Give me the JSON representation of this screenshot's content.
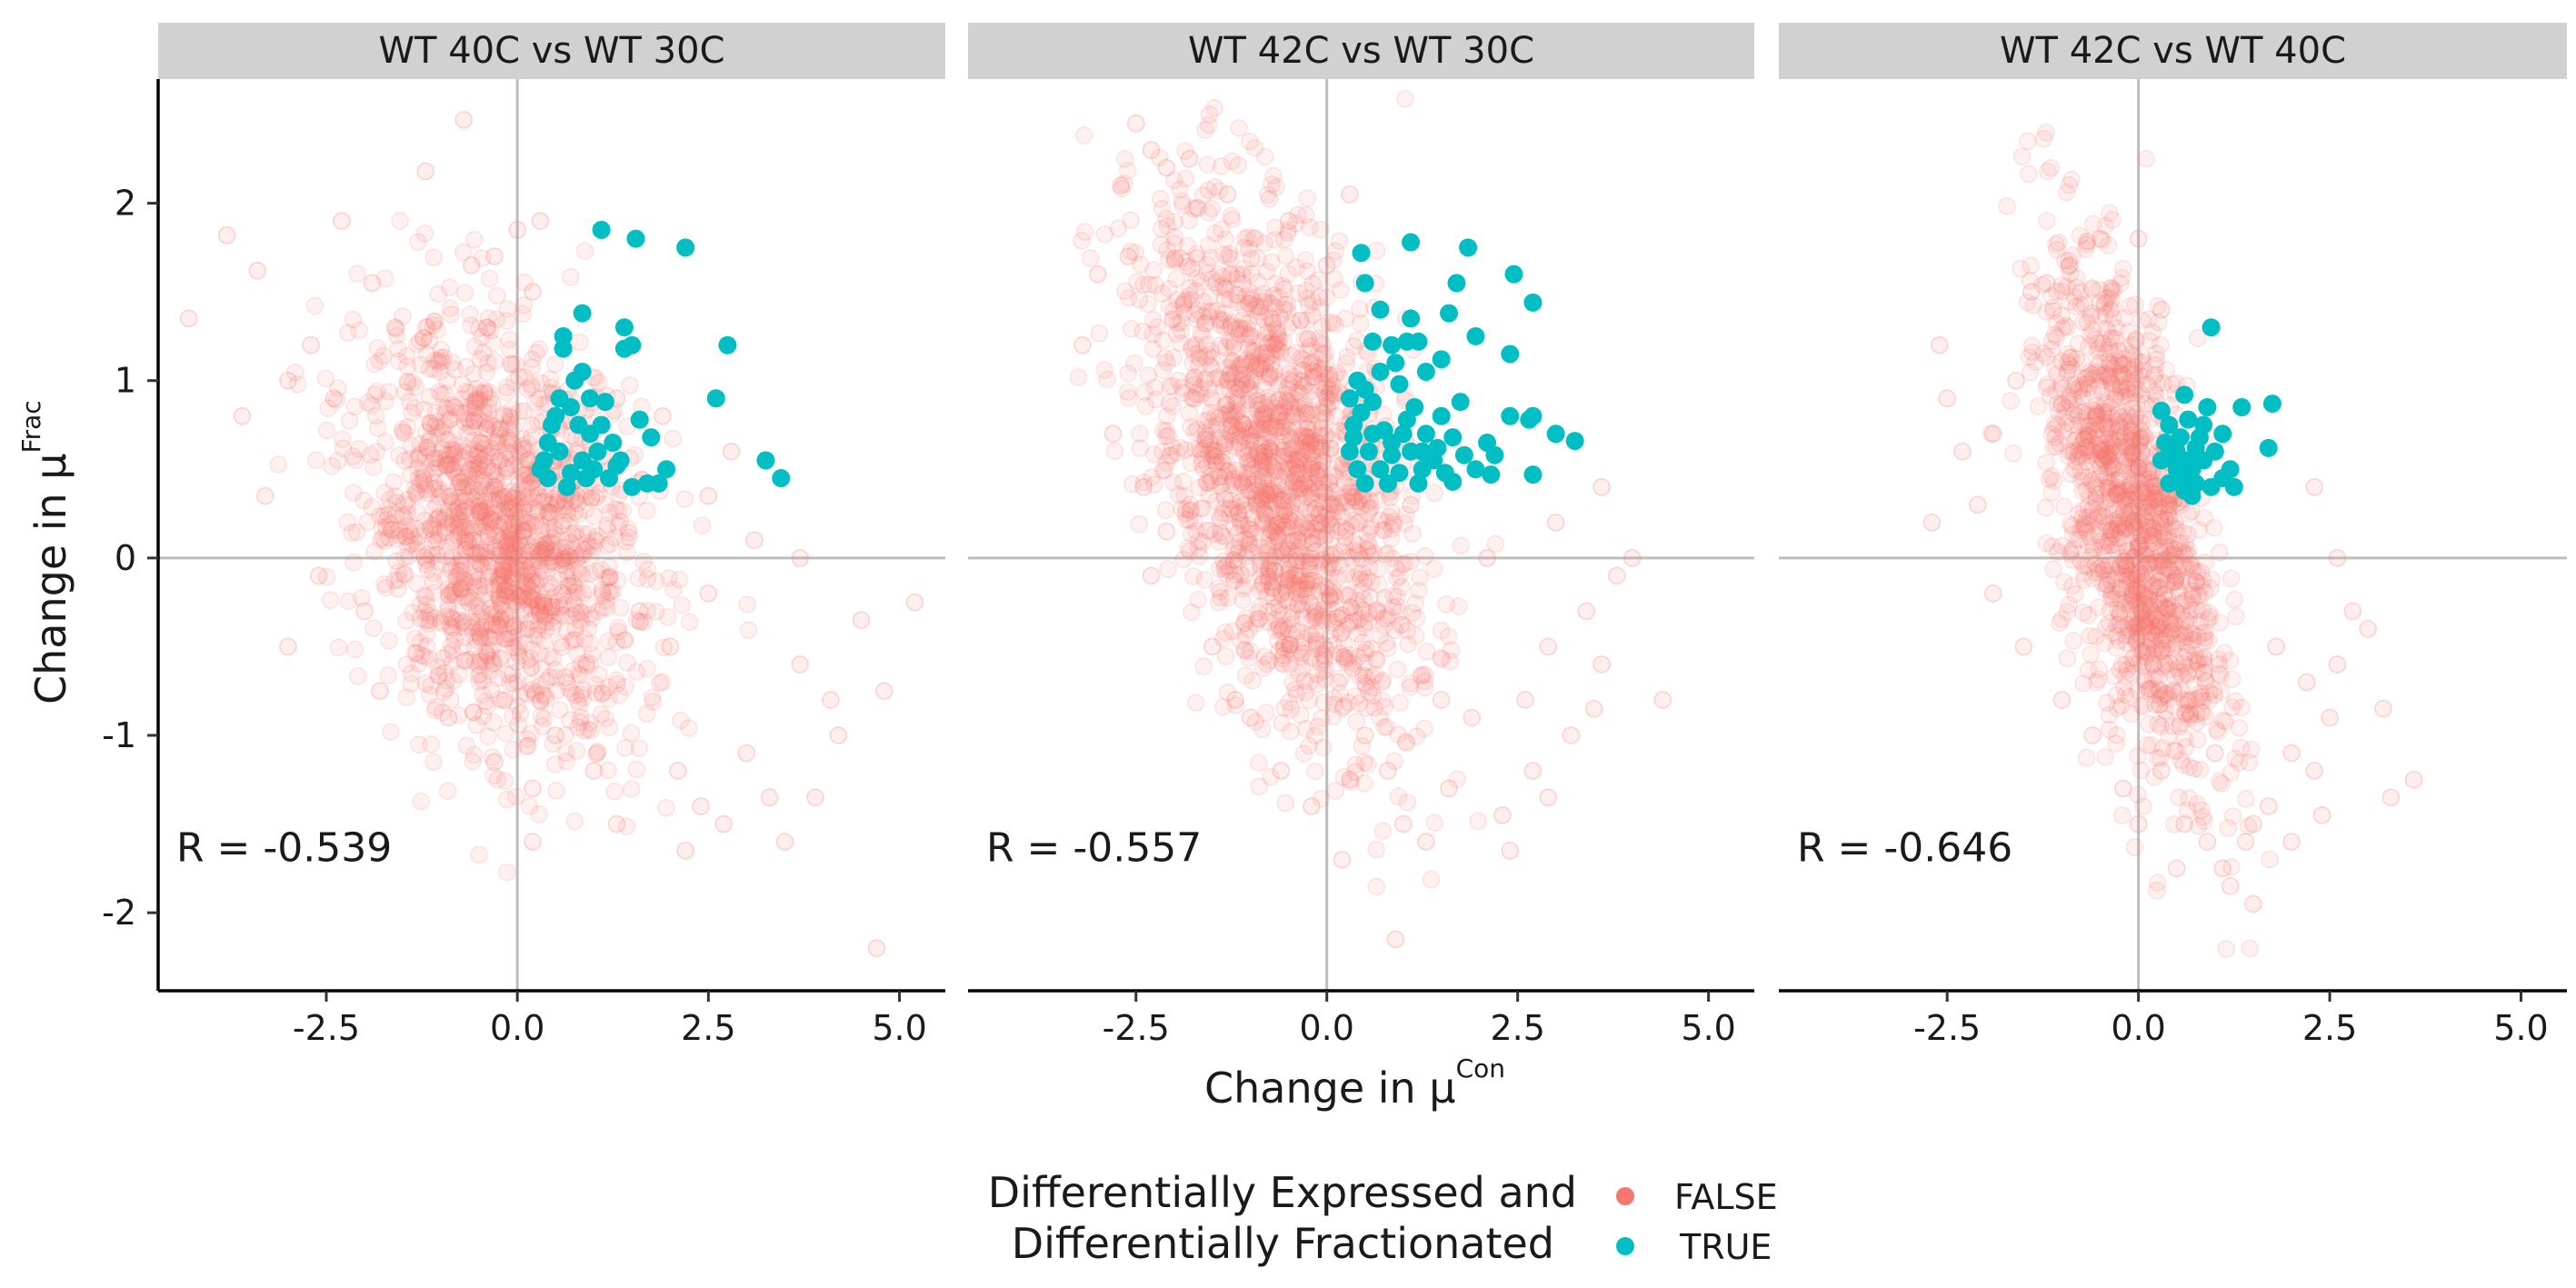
{
  "chart_data": {
    "type": "scatter",
    "ylabel_main": "Change in μ",
    "ylabel_sup": "Frac",
    "xlabel_main": "Change in μ",
    "xlabel_sup": "Con",
    "xlim": [
      -4.7,
      5.6
    ],
    "ylim": [
      -2.44,
      2.7
    ],
    "x_ticks": [
      -2.5,
      0.0,
      2.5,
      5.0
    ],
    "x_tick_labels": [
      "-2.5",
      "0.0",
      "2.5",
      "5.0"
    ],
    "y_ticks": [
      2,
      1,
      0,
      -1,
      -2
    ],
    "y_tick_labels": [
      "2",
      "1",
      "0",
      "-1",
      "-2"
    ],
    "grid": false,
    "reference_lines": {
      "x": 0,
      "y": 0
    },
    "legend": {
      "title_line1": "Differentially Expressed and",
      "title_line2": "Differentially Fractionated",
      "position": "bottom",
      "entries": [
        {
          "label": "FALSE",
          "color": "#F8766D"
        },
        {
          "label": "TRUE",
          "color": "#00BFC4"
        }
      ]
    },
    "colors": {
      "false": "#F8766D",
      "true": "#00BFC4",
      "strip_bg": "#d1d1d1",
      "ref_line": "#bdbdbd"
    },
    "panels": [
      {
        "title": "WT 40C vs WT 30C",
        "annotation": "R = -0.539",
        "false_cloud": {
          "center": [
            -0.2,
            0.1
          ],
          "sd": [
            0.9,
            0.55
          ],
          "n": 1500
        },
        "false_outliers": [
          [
            -4.3,
            1.35
          ],
          [
            -3.8,
            1.82
          ],
          [
            -3.4,
            1.62
          ],
          [
            -3.0,
            1.0
          ],
          [
            -2.7,
            1.2
          ],
          [
            -1.2,
            2.18
          ],
          [
            -0.7,
            2.47
          ],
          [
            -2.3,
            1.9
          ],
          [
            -3.3,
            0.35
          ],
          [
            -2.4,
            0.9
          ],
          [
            -1.9,
            1.55
          ],
          [
            -2.0,
            -0.3
          ],
          [
            -2.6,
            -0.1
          ],
          [
            -3.0,
            -0.5
          ],
          [
            -1.8,
            -0.75
          ],
          [
            -0.9,
            -0.9
          ],
          [
            -0.3,
            -1.15
          ],
          [
            0.2,
            -1.3
          ],
          [
            0.5,
            -1.0
          ],
          [
            1.0,
            -1.2
          ],
          [
            1.3,
            -1.5
          ],
          [
            2.1,
            -1.2
          ],
          [
            2.4,
            -1.4
          ],
          [
            2.7,
            -1.5
          ],
          [
            3.0,
            -1.1
          ],
          [
            3.3,
            -1.35
          ],
          [
            3.5,
            -1.6
          ],
          [
            3.9,
            -1.35
          ],
          [
            4.2,
            -1.0
          ],
          [
            4.5,
            -0.35
          ],
          [
            4.8,
            -0.75
          ],
          [
            5.2,
            -0.25
          ],
          [
            4.7,
            -2.2
          ],
          [
            2.0,
            -0.5
          ],
          [
            2.5,
            -0.2
          ],
          [
            3.7,
            0.0
          ],
          [
            2.8,
            0.6
          ],
          [
            2.5,
            0.35
          ],
          [
            3.1,
            0.1
          ],
          [
            1.6,
            -0.3
          ],
          [
            -0.6,
            1.65
          ],
          [
            -0.3,
            1.7
          ],
          [
            0.0,
            1.85
          ],
          [
            0.2,
            1.5
          ],
          [
            0.3,
            1.9
          ],
          [
            -1.6,
            1.3
          ],
          [
            1.3,
            0.9
          ],
          [
            1.9,
            0.8
          ],
          [
            3.7,
            -0.6
          ],
          [
            4.1,
            -0.8
          ],
          [
            2.2,
            -1.65
          ],
          [
            0.2,
            -1.6
          ],
          [
            -0.4,
            1.3
          ],
          [
            -3.6,
            0.8
          ]
        ],
        "true_points": [
          [
            1.1,
            1.85
          ],
          [
            1.55,
            1.8
          ],
          [
            2.2,
            1.75
          ],
          [
            0.85,
            1.38
          ],
          [
            1.4,
            1.3
          ],
          [
            2.75,
            1.2
          ],
          [
            0.6,
            1.25
          ],
          [
            0.6,
            1.18
          ],
          [
            1.4,
            1.18
          ],
          [
            1.5,
            1.2
          ],
          [
            0.85,
            1.05
          ],
          [
            0.75,
            1.0
          ],
          [
            0.55,
            0.9
          ],
          [
            0.95,
            0.9
          ],
          [
            1.15,
            0.88
          ],
          [
            0.5,
            0.8
          ],
          [
            0.7,
            0.85
          ],
          [
            0.8,
            0.75
          ],
          [
            1.6,
            0.78
          ],
          [
            2.6,
            0.9
          ],
          [
            0.95,
            0.7
          ],
          [
            1.25,
            0.65
          ],
          [
            1.05,
            0.6
          ],
          [
            0.4,
            0.65
          ],
          [
            0.35,
            0.55
          ],
          [
            0.55,
            0.6
          ],
          [
            0.85,
            0.55
          ],
          [
            1.75,
            0.68
          ],
          [
            1.35,
            0.55
          ],
          [
            1.0,
            0.5
          ],
          [
            0.4,
            0.45
          ],
          [
            0.65,
            0.4
          ],
          [
            0.9,
            0.45
          ],
          [
            1.2,
            0.45
          ],
          [
            1.5,
            0.4
          ],
          [
            1.85,
            0.42
          ],
          [
            1.95,
            0.5
          ],
          [
            3.25,
            0.55
          ],
          [
            3.45,
            0.45
          ],
          [
            0.45,
            0.75
          ],
          [
            1.1,
            0.75
          ],
          [
            0.3,
            0.5
          ],
          [
            1.7,
            0.42
          ],
          [
            1.3,
            0.52
          ],
          [
            0.7,
            0.48
          ]
        ]
      },
      {
        "title": "WT 42C vs WT 30C",
        "annotation": "R = -0.557",
        "false_cloud": {
          "center": [
            -0.6,
            0.5
          ],
          "sd": [
            0.85,
            0.65
          ],
          "n": 1700,
          "tilt": -0.7
        },
        "false_outliers": [
          [
            -2.5,
            2.45
          ],
          [
            -2.3,
            2.3
          ],
          [
            -2.7,
            2.1
          ],
          [
            -2.1,
            2.2
          ],
          [
            -1.8,
            2.25
          ],
          [
            -2.6,
            1.7
          ],
          [
            -3.0,
            1.6
          ],
          [
            -2.8,
            0.7
          ],
          [
            -2.4,
            0.4
          ],
          [
            -2.1,
            0.15
          ],
          [
            -2.3,
            -0.1
          ],
          [
            -1.5,
            -0.5
          ],
          [
            -1.0,
            -0.9
          ],
          [
            -0.6,
            -1.2
          ],
          [
            0.3,
            -1.25
          ],
          [
            0.5,
            -1.0
          ],
          [
            0.8,
            -1.2
          ],
          [
            1.0,
            -1.5
          ],
          [
            1.3,
            -1.6
          ],
          [
            1.6,
            -1.3
          ],
          [
            2.3,
            -1.45
          ],
          [
            2.4,
            -1.65
          ],
          [
            2.7,
            -1.2
          ],
          [
            2.9,
            -1.35
          ],
          [
            3.2,
            -1.0
          ],
          [
            3.5,
            -0.85
          ],
          [
            3.6,
            -0.6
          ],
          [
            3.4,
            -0.3
          ],
          [
            3.8,
            -0.1
          ],
          [
            4.0,
            0.0
          ],
          [
            4.4,
            -0.8
          ],
          [
            3.6,
            0.4
          ],
          [
            3.0,
            0.2
          ],
          [
            0.9,
            -2.15
          ],
          [
            0.2,
            -1.7
          ],
          [
            -0.2,
            -1.4
          ],
          [
            1.9,
            -0.9
          ],
          [
            2.6,
            -0.8
          ],
          [
            1.1,
            0.3
          ],
          [
            0.0,
            1.65
          ],
          [
            0.3,
            2.05
          ],
          [
            -1.3,
            2.05
          ],
          [
            -0.5,
            1.9
          ],
          [
            2.1,
            0.0
          ],
          [
            2.9,
            -0.5
          ],
          [
            -3.2,
            1.2
          ],
          [
            -1.2,
            -0.8
          ],
          [
            1.5,
            -0.8
          ]
        ],
        "true_points": [
          [
            0.45,
            1.72
          ],
          [
            1.1,
            1.78
          ],
          [
            1.85,
            1.75
          ],
          [
            2.45,
            1.6
          ],
          [
            0.5,
            1.55
          ],
          [
            1.7,
            1.55
          ],
          [
            2.7,
            1.44
          ],
          [
            0.7,
            1.4
          ],
          [
            1.1,
            1.35
          ],
          [
            1.6,
            1.38
          ],
          [
            1.95,
            1.25
          ],
          [
            0.6,
            1.22
          ],
          [
            1.05,
            1.22
          ],
          [
            1.2,
            1.22
          ],
          [
            2.4,
            1.15
          ],
          [
            0.85,
            1.2
          ],
          [
            0.9,
            1.1
          ],
          [
            1.5,
            1.12
          ],
          [
            0.4,
            1.0
          ],
          [
            0.7,
            1.05
          ],
          [
            1.3,
            1.05
          ],
          [
            0.5,
            0.95
          ],
          [
            0.95,
            0.98
          ],
          [
            1.75,
            0.88
          ],
          [
            0.3,
            0.9
          ],
          [
            0.6,
            0.88
          ],
          [
            1.15,
            0.85
          ],
          [
            1.5,
            0.8
          ],
          [
            2.4,
            0.8
          ],
          [
            2.65,
            0.78
          ],
          [
            2.7,
            0.8
          ],
          [
            3.0,
            0.7
          ],
          [
            3.25,
            0.66
          ],
          [
            0.35,
            0.75
          ],
          [
            0.75,
            0.72
          ],
          [
            1.0,
            0.7
          ],
          [
            1.3,
            0.7
          ],
          [
            1.65,
            0.68
          ],
          [
            2.1,
            0.65
          ],
          [
            0.3,
            0.6
          ],
          [
            0.55,
            0.6
          ],
          [
            0.85,
            0.58
          ],
          [
            1.1,
            0.6
          ],
          [
            1.4,
            0.55
          ],
          [
            1.8,
            0.58
          ],
          [
            0.4,
            0.5
          ],
          [
            0.7,
            0.5
          ],
          [
            0.95,
            0.48
          ],
          [
            1.25,
            0.5
          ],
          [
            1.55,
            0.48
          ],
          [
            1.95,
            0.5
          ],
          [
            2.15,
            0.47
          ],
          [
            2.7,
            0.47
          ],
          [
            0.5,
            0.42
          ],
          [
            0.8,
            0.42
          ],
          [
            1.2,
            0.42
          ],
          [
            1.65,
            0.43
          ],
          [
            0.35,
            0.68
          ],
          [
            1.05,
            0.78
          ],
          [
            0.6,
            0.7
          ],
          [
            1.45,
            0.62
          ],
          [
            0.85,
            0.65
          ],
          [
            1.25,
            0.6
          ],
          [
            0.45,
            0.82
          ],
          [
            2.2,
            0.58
          ]
        ]
      },
      {
        "title": "WT 42C vs WT 40C",
        "annotation": "R = -0.646",
        "false_cloud": {
          "center": [
            -0.1,
            0.25
          ],
          "sd": [
            0.55,
            0.6
          ],
          "n": 1300,
          "tilt": -0.85
        },
        "false_outliers": [
          [
            -2.6,
            1.2
          ],
          [
            -2.5,
            0.9
          ],
          [
            -2.3,
            0.6
          ],
          [
            -2.1,
            0.3
          ],
          [
            -1.9,
            0.7
          ],
          [
            -1.6,
            1.0
          ],
          [
            -1.4,
            1.5
          ],
          [
            -1.2,
            1.55
          ],
          [
            -0.9,
            1.65
          ],
          [
            -2.7,
            0.2
          ],
          [
            -1.9,
            -0.2
          ],
          [
            -1.5,
            -0.5
          ],
          [
            -1.0,
            -0.8
          ],
          [
            -0.6,
            -1.0
          ],
          [
            -0.2,
            -1.3
          ],
          [
            0.3,
            -1.2
          ],
          [
            0.6,
            -1.5
          ],
          [
            0.9,
            -1.6
          ],
          [
            1.1,
            -1.75
          ],
          [
            1.2,
            -1.85
          ],
          [
            1.4,
            -1.6
          ],
          [
            1.5,
            -1.5
          ],
          [
            1.7,
            -1.4
          ],
          [
            2.0,
            -1.1
          ],
          [
            2.3,
            -1.2
          ],
          [
            2.4,
            -1.45
          ],
          [
            2.6,
            -0.6
          ],
          [
            2.8,
            -0.3
          ],
          [
            2.5,
            -0.9
          ],
          [
            3.2,
            -0.85
          ],
          [
            3.3,
            -1.35
          ],
          [
            3.6,
            -1.25
          ],
          [
            2.3,
            0.4
          ],
          [
            2.6,
            0.0
          ],
          [
            1.0,
            -1.1
          ],
          [
            0.0,
            -1.5
          ],
          [
            2.0,
            -1.6
          ],
          [
            0.0,
            1.8
          ],
          [
            0.3,
            1.4
          ],
          [
            -0.5,
            1.8
          ],
          [
            1.8,
            -0.5
          ],
          [
            1.5,
            -1.95
          ],
          [
            2.2,
            -0.7
          ],
          [
            0.5,
            -1.75
          ],
          [
            3.0,
            -0.4
          ]
        ],
        "true_points": [
          [
            0.95,
            1.3
          ],
          [
            0.3,
            0.83
          ],
          [
            0.6,
            0.92
          ],
          [
            0.9,
            0.85
          ],
          [
            1.35,
            0.85
          ],
          [
            1.75,
            0.87
          ],
          [
            0.4,
            0.75
          ],
          [
            0.65,
            0.78
          ],
          [
            0.85,
            0.75
          ],
          [
            1.1,
            0.7
          ],
          [
            0.35,
            0.65
          ],
          [
            0.55,
            0.68
          ],
          [
            0.75,
            0.62
          ],
          [
            1.0,
            0.6
          ],
          [
            1.7,
            0.62
          ],
          [
            0.3,
            0.55
          ],
          [
            0.5,
            0.5
          ],
          [
            0.7,
            0.5
          ],
          [
            0.85,
            0.55
          ],
          [
            1.1,
            0.45
          ],
          [
            1.25,
            0.4
          ],
          [
            0.4,
            0.42
          ],
          [
            0.6,
            0.38
          ],
          [
            0.75,
            0.42
          ],
          [
            0.95,
            0.4
          ],
          [
            0.5,
            0.6
          ],
          [
            0.65,
            0.55
          ],
          [
            0.8,
            0.68
          ],
          [
            0.45,
            0.58
          ],
          [
            1.2,
            0.5
          ],
          [
            0.55,
            0.45
          ],
          [
            0.7,
            0.35
          ]
        ]
      }
    ]
  }
}
